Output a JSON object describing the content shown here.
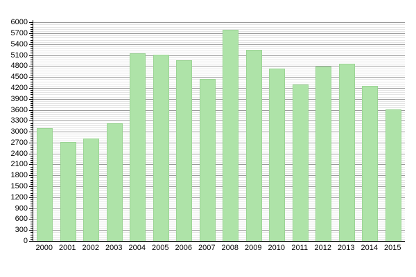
{
  "chart_data": {
    "type": "bar",
    "title": "",
    "xlabel": "",
    "ylabel": "",
    "categories": [
      "2000",
      "2001",
      "2002",
      "2003",
      "2004",
      "2005",
      "2006",
      "2007",
      "2008",
      "2009",
      "2010",
      "2011",
      "2012",
      "2013",
      "2014",
      "2015"
    ],
    "values": [
      3090,
      2720,
      2820,
      3230,
      5150,
      5110,
      4960,
      4450,
      5790,
      5250,
      4730,
      4290,
      4790,
      4870,
      4250,
      3620
    ],
    "ylim": [
      0,
      6000
    ],
    "ytick_step": 300,
    "minor_gridline_step": 60,
    "grid": true,
    "legend_position": "none",
    "colors": {
      "bar_fill": "#aee3a8",
      "bar_border": "#9bd494",
      "major_gridline": "#9a9a9a",
      "minor_gridline": "#e4e4e4",
      "axis": "#000000",
      "label_text": "#000000",
      "background": "#ffffff"
    }
  }
}
